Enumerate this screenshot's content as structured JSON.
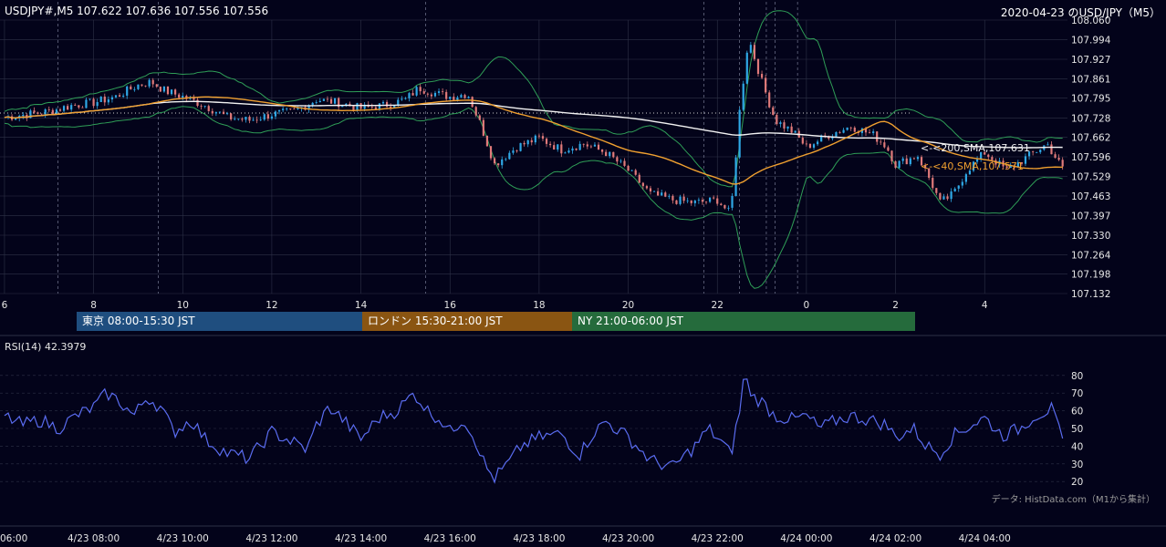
{
  "header": {
    "ohlc": "USDJPY#,M5 107.622 107.636 107.556 107.556",
    "title": "2020-04-23 のUSD/JPY（M5）"
  },
  "sessions": [
    {
      "label": "東京 08:00-15:30 JST",
      "color": "#1f4e7f"
    },
    {
      "label": "ロンドン 15:30-21:00 JST",
      "color": "#8a5512"
    },
    {
      "label": "NY 21:00-06:00 JST",
      "color": "#256b3c"
    }
  ],
  "ma_labels": {
    "sma200": "<-<200,SMA,107.631",
    "sma40": "<-<40,SMA,107.571"
  },
  "rsi": {
    "label": "RSI(14) 42.3979"
  },
  "credit": "データ: HistData.com（M1から集計）",
  "colors": {
    "background": "#03031a",
    "grid": "#2e3247",
    "bull_candle": "#2fa8e6",
    "bear_candle": "#e07a7a",
    "sma200": "#f2f2f2",
    "sma40": "#f0a030",
    "bollinger": "#2f9e57",
    "rsi": "#5a6cf0",
    "reference_dots": "#cfcfcf"
  },
  "chart_data": [
    {
      "type": "candlestick",
      "symbol": "USDJPY",
      "timeframe": "M5",
      "y_ticks": [
        "107.132",
        "107.198",
        "107.264",
        "107.330",
        "107.397",
        "107.463",
        "107.529",
        "107.596",
        "107.662",
        "107.728",
        "107.795",
        "107.861",
        "107.927",
        "107.994",
        "108.060"
      ],
      "ylim": [
        107.132,
        108.06
      ],
      "x_ticks": [
        "6",
        "8",
        "10",
        "12",
        "14",
        "16",
        "18",
        "20",
        "22",
        "0",
        "2",
        "4"
      ],
      "x_tick_hours": [
        6,
        8,
        10,
        12,
        14,
        16,
        18,
        20,
        22,
        24,
        26,
        28
      ],
      "xlim_hours": [
        6,
        29.75
      ],
      "series": [
        {
          "name": "SMA 200",
          "last": 107.631
        },
        {
          "name": "SMA 40",
          "last": 107.571
        },
        {
          "name": "Bollinger Bands"
        }
      ],
      "approx_price_path": [
        [
          6,
          107.73
        ],
        [
          6.5,
          107.74
        ],
        [
          7,
          107.75
        ],
        [
          7.5,
          107.77
        ],
        [
          8,
          107.78
        ],
        [
          8.5,
          107.8
        ],
        [
          9,
          107.84
        ],
        [
          9.3,
          107.85
        ],
        [
          9.6,
          107.82
        ],
        [
          10,
          107.8
        ],
        [
          10.5,
          107.77
        ],
        [
          11,
          107.73
        ],
        [
          11.5,
          107.72
        ],
        [
          12,
          107.74
        ],
        [
          12.5,
          107.75
        ],
        [
          13,
          107.79
        ],
        [
          13.5,
          107.78
        ],
        [
          14,
          107.76
        ],
        [
          14.5,
          107.77
        ],
        [
          15,
          107.79
        ],
        [
          15.3,
          107.83
        ],
        [
          15.7,
          107.81
        ],
        [
          16,
          107.8
        ],
        [
          16.4,
          107.81
        ],
        [
          16.7,
          107.7
        ],
        [
          17,
          107.57
        ],
        [
          17.5,
          107.63
        ],
        [
          18,
          107.66
        ],
        [
          18.5,
          107.62
        ],
        [
          19,
          107.64
        ],
        [
          19.5,
          107.61
        ],
        [
          20,
          107.55
        ],
        [
          20.5,
          107.47
        ],
        [
          21,
          107.45
        ],
        [
          21.5,
          107.44
        ],
        [
          22,
          107.45
        ],
        [
          22.3,
          107.4
        ],
        [
          22.5,
          107.75
        ],
        [
          22.7,
          108.0
        ],
        [
          23,
          107.85
        ],
        [
          23.3,
          107.72
        ],
        [
          23.7,
          107.68
        ],
        [
          24,
          107.63
        ],
        [
          24.5,
          107.67
        ],
        [
          25,
          107.7
        ],
        [
          25.5,
          107.67
        ],
        [
          25.8,
          107.63
        ],
        [
          26,
          107.57
        ],
        [
          26.5,
          107.6
        ],
        [
          26.8,
          107.51
        ],
        [
          27,
          107.44
        ],
        [
          27.3,
          107.47
        ],
        [
          27.6,
          107.55
        ],
        [
          28,
          107.61
        ],
        [
          28.5,
          107.55
        ],
        [
          29,
          107.6
        ],
        [
          29.4,
          107.64
        ],
        [
          29.75,
          107.556
        ]
      ],
      "session_ranges_hours": [
        [
          8,
          15.5
        ],
        [
          15.5,
          21
        ],
        [
          21,
          29.75
        ]
      ]
    },
    {
      "type": "line",
      "name": "RSI(14)",
      "last": 42.3979,
      "y_ticks": [
        20,
        30,
        40,
        50,
        60,
        70,
        80
      ],
      "ylim": [
        17,
        83
      ],
      "x_ticks": [
        "06:00",
        "4/23 08:00",
        "4/23 10:00",
        "4/23 12:00",
        "4/23 14:00",
        "4/23 16:00",
        "4/23 18:00",
        "4/23 20:00",
        "4/23 22:00",
        "4/24 00:00",
        "4/24 02:00",
        "4/24 04:00"
      ],
      "approx_values": [
        [
          6,
          57
        ],
        [
          6.4,
          52
        ],
        [
          6.8,
          55
        ],
        [
          7.2,
          50
        ],
        [
          7.6,
          57
        ],
        [
          8,
          62
        ],
        [
          8.3,
          70
        ],
        [
          8.6,
          65
        ],
        [
          8.9,
          57
        ],
        [
          9.2,
          68
        ],
        [
          9.5,
          62
        ],
        [
          9.8,
          48
        ],
        [
          10.2,
          55
        ],
        [
          10.5,
          44
        ],
        [
          11,
          36
        ],
        [
          11.5,
          33
        ],
        [
          12,
          48
        ],
        [
          12.5,
          42
        ],
        [
          12.8,
          38
        ],
        [
          13,
          52
        ],
        [
          13.3,
          62
        ],
        [
          13.6,
          55
        ],
        [
          14,
          44
        ],
        [
          14.4,
          56
        ],
        [
          14.8,
          60
        ],
        [
          15.2,
          70
        ],
        [
          15.5,
          60
        ],
        [
          15.8,
          55
        ],
        [
          16,
          48
        ],
        [
          16.3,
          56
        ],
        [
          16.6,
          42
        ],
        [
          16.8,
          28
        ],
        [
          17,
          22
        ],
        [
          17.3,
          30
        ],
        [
          17.6,
          40
        ],
        [
          18,
          45
        ],
        [
          18.5,
          47
        ],
        [
          18.9,
          35
        ],
        [
          19.2,
          47
        ],
        [
          19.5,
          54
        ],
        [
          20,
          45
        ],
        [
          20.5,
          32
        ],
        [
          21,
          28
        ],
        [
          21.5,
          40
        ],
        [
          21.8,
          50
        ],
        [
          22.1,
          42
        ],
        [
          22.3,
          35
        ],
        [
          22.5,
          60
        ],
        [
          22.6,
          80
        ],
        [
          22.8,
          68
        ],
        [
          23,
          65
        ],
        [
          23.3,
          57
        ],
        [
          23.7,
          55
        ],
        [
          24,
          57
        ],
        [
          24.3,
          50
        ],
        [
          24.7,
          55
        ],
        [
          25,
          57
        ],
        [
          25.4,
          55
        ],
        [
          25.8,
          52
        ],
        [
          26,
          45
        ],
        [
          26.4,
          50
        ],
        [
          26.7,
          40
        ],
        [
          27,
          36
        ],
        [
          27.3,
          46
        ],
        [
          27.7,
          52
        ],
        [
          28,
          56
        ],
        [
          28.4,
          46
        ],
        [
          28.8,
          50
        ],
        [
          29.1,
          57
        ],
        [
          29.5,
          61
        ],
        [
          29.75,
          42.4
        ]
      ]
    }
  ]
}
